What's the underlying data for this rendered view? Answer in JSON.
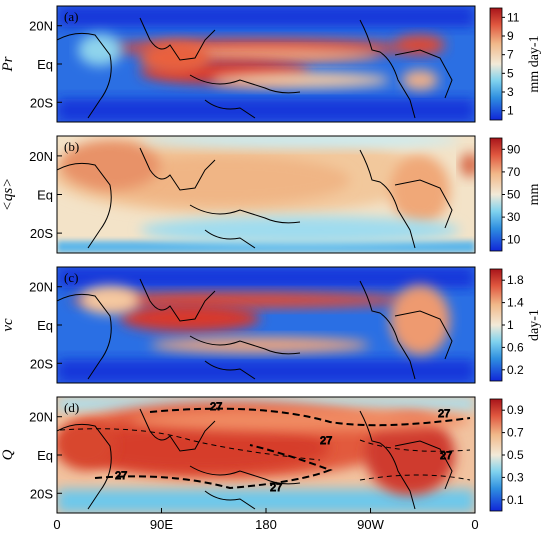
{
  "chart_data": [
    {
      "type": "heatmap",
      "panel_label": "(a)",
      "ylabel": "Pr",
      "unit": "mm day-1",
      "colorbar_ticks": [
        "1",
        "3",
        "5",
        "7",
        "9",
        "11"
      ],
      "colorbar_range": [
        0,
        12
      ]
    },
    {
      "type": "heatmap",
      "panel_label": "(b)",
      "ylabel": "<qs>",
      "unit": "mm",
      "colorbar_ticks": [
        "10",
        "30",
        "50",
        "70",
        "90"
      ],
      "colorbar_range": [
        0,
        100
      ]
    },
    {
      "type": "heatmap",
      "panel_label": "(c)",
      "ylabel": "vc",
      "unit": "day-1",
      "colorbar_ticks": [
        "0.2",
        "0.6",
        "1",
        "1.4",
        "1.8"
      ],
      "colorbar_range": [
        0,
        2
      ]
    },
    {
      "type": "heatmap",
      "panel_label": "(d)",
      "ylabel": "Q",
      "unit": "",
      "colorbar_ticks": [
        "0.1",
        "0.3",
        "0.5",
        "0.7",
        "0.9"
      ],
      "colorbar_range": [
        0,
        1
      ],
      "contour_labels": [
        "27",
        "27",
        "27",
        "27",
        "27",
        "27"
      ]
    }
  ],
  "y_ticks": [
    "20N",
    "Eq",
    "20S"
  ],
  "x_ticks": [
    "0",
    "90E",
    "180",
    "90W",
    "0"
  ],
  "colors": {
    "low": "#0a1fd9",
    "mid": "#f2dcc0",
    "high": "#b0181a"
  }
}
